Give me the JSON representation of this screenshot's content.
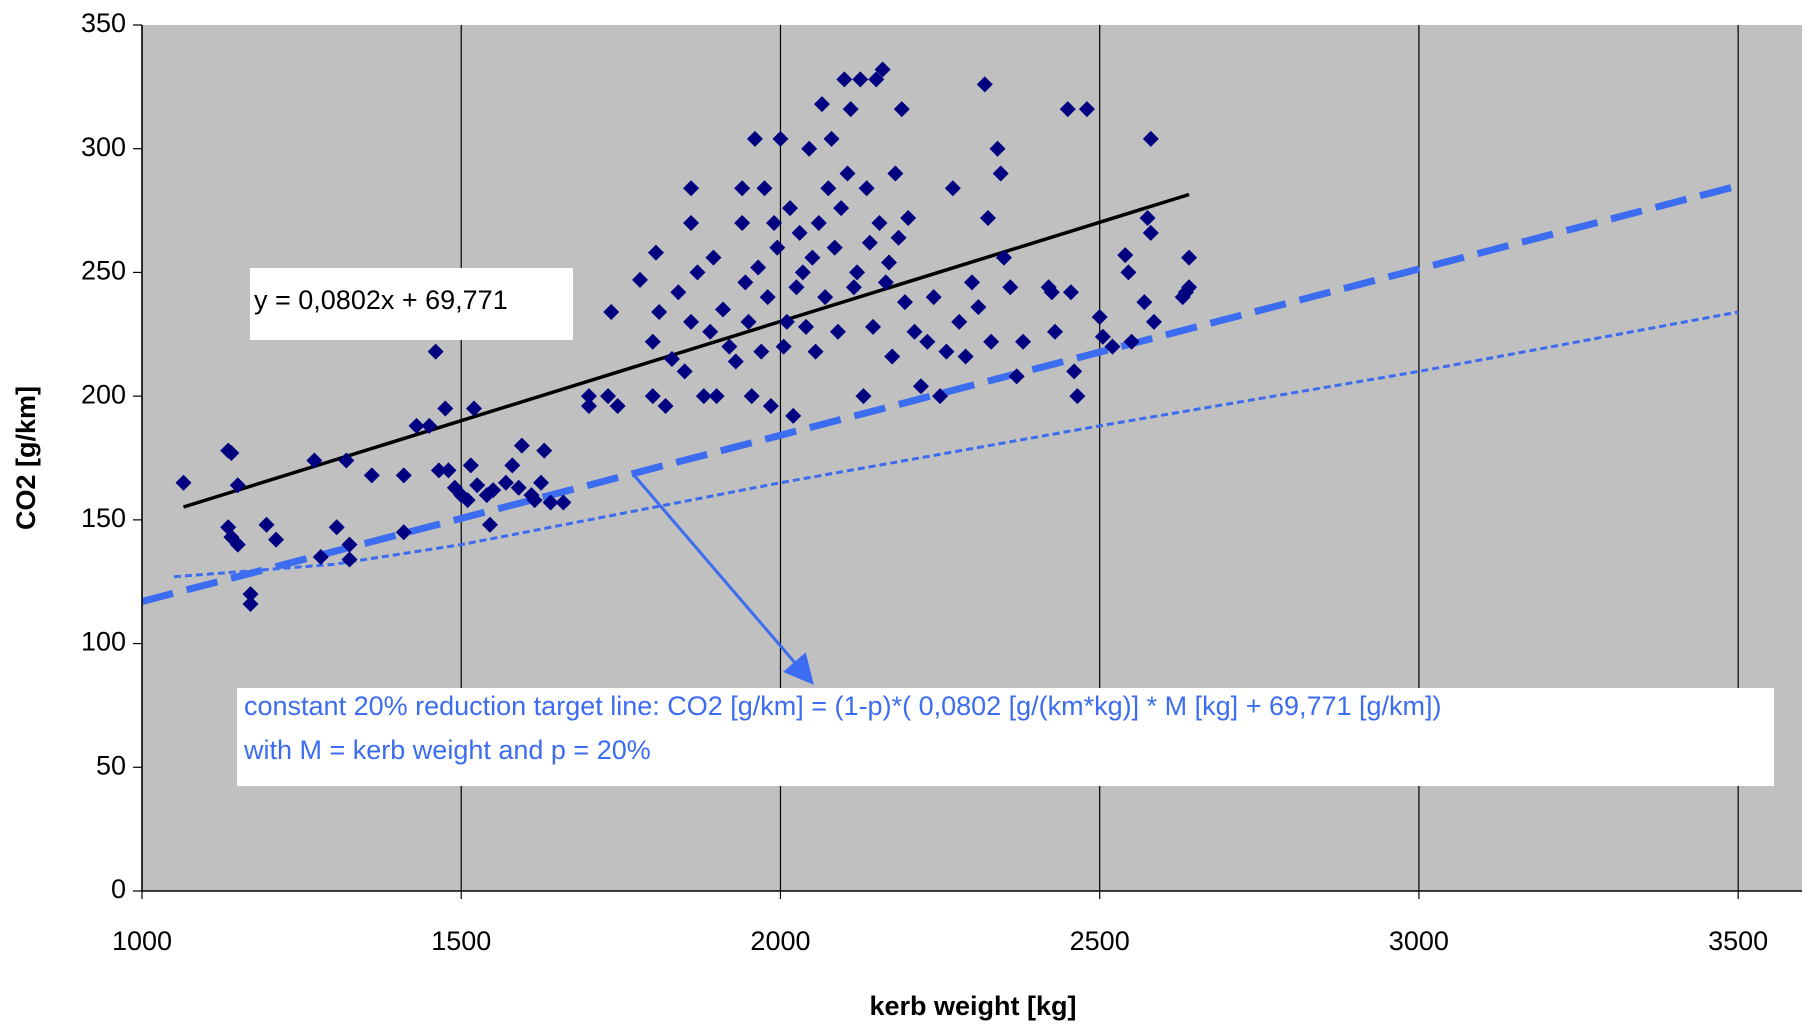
{
  "chart_data": {
    "type": "scatter",
    "xlabel": "kerb weight [kg]",
    "ylabel": "CO2 [g/km]",
    "xlim": [
      1000,
      3600
    ],
    "ylim": [
      0,
      350
    ],
    "xticks": [
      1000,
      1500,
      2000,
      2500,
      3000,
      3500
    ],
    "yticks": [
      0,
      50,
      100,
      150,
      200,
      250,
      300,
      350
    ],
    "xgrid": true,
    "ygrid": false,
    "background": "#c0c0c0",
    "annotations": [
      "y = 0,0802x + 69,771",
      "constant 20% reduction target line: CO2 [g/km]  = (1-p)*( 0,0802 [g/(km*kg)] * M [kg] + 69,771 [g/km])",
      "with M = kerb weight and p = 20%"
    ],
    "series": [
      {
        "style": "markers",
        "color": "#000080",
        "x": [
          1065,
          1135,
          1140,
          1135,
          1140,
          1150,
          1150,
          1170,
          1170,
          1195,
          1210,
          1270,
          1280,
          1305,
          1320,
          1325,
          1325,
          1360,
          1410,
          1410,
          1430,
          1450,
          1460,
          1465,
          1475,
          1480,
          1490,
          1500,
          1510,
          1515,
          1520,
          1525,
          1540,
          1545,
          1550,
          1570,
          1580,
          1590,
          1595,
          1610,
          1615,
          1625,
          1630,
          1640,
          1660,
          1700,
          1700,
          1730,
          1735,
          1745,
          1780,
          1800,
          1800,
          1805,
          1810,
          1820,
          1830,
          1840,
          1850,
          1860,
          1860,
          1860,
          1870,
          1880,
          1890,
          1895,
          1900,
          1910,
          1920,
          1930,
          1940,
          1940,
          1945,
          1950,
          1955,
          1960,
          1965,
          1970,
          1975,
          1980,
          1985,
          1990,
          1995,
          2000,
          2005,
          2010,
          2015,
          2020,
          2025,
          2030,
          2035,
          2040,
          2045,
          2050,
          2055,
          2060,
          2065,
          2070,
          2075,
          2080,
          2085,
          2090,
          2095,
          2100,
          2105,
          2110,
          2115,
          2120,
          2125,
          2130,
          2135,
          2140,
          2145,
          2150,
          2155,
          2160,
          2165,
          2170,
          2175,
          2180,
          2185,
          2190,
          2195,
          2200,
          2210,
          2220,
          2230,
          2240,
          2250,
          2260,
          2270,
          2280,
          2290,
          2300,
          2310,
          2320,
          2325,
          2330,
          2340,
          2345,
          2350,
          2360,
          2370,
          2380,
          2420,
          2425,
          2430,
          2450,
          2455,
          2460,
          2465,
          2480,
          2500,
          2505,
          2520,
          2540,
          2545,
          2550,
          2570,
          2575,
          2580,
          2580,
          2585,
          2630,
          2640,
          2640,
          2635
        ],
        "values": [
          165,
          178,
          177,
          147,
          143,
          140,
          164,
          120,
          116,
          148,
          142,
          174,
          135,
          147,
          174,
          140,
          134,
          168,
          145,
          168,
          188,
          188,
          218,
          170,
          195,
          170,
          163,
          160,
          158,
          172,
          195,
          164,
          160,
          148,
          162,
          165,
          172,
          163,
          180,
          160,
          158,
          165,
          178,
          157,
          157,
          200,
          196,
          200,
          234,
          196,
          247,
          200,
          222,
          258,
          234,
          196,
          215,
          242,
          210,
          284,
          270,
          230,
          250,
          200,
          226,
          256,
          200,
          235,
          220,
          214,
          284,
          270,
          246,
          230,
          200,
          304,
          252,
          218,
          284,
          240,
          196,
          270,
          260,
          304,
          220,
          230,
          276,
          192,
          244,
          266,
          250,
          228,
          300,
          256,
          218,
          270,
          318,
          240,
          284,
          304,
          260,
          226,
          276,
          328,
          290,
          316,
          244,
          250,
          328,
          200,
          284,
          262,
          228,
          328,
          270,
          332,
          246,
          254,
          216,
          290,
          264,
          316,
          238,
          272,
          226,
          204,
          222,
          240,
          200,
          218,
          284,
          230,
          216,
          246,
          236,
          326,
          272,
          222,
          300,
          290,
          256,
          244,
          208,
          222,
          244,
          242,
          226,
          316,
          242,
          210,
          200,
          316,
          232,
          224,
          220,
          257,
          250,
          222,
          238,
          272,
          304,
          266,
          230,
          240,
          256,
          244,
          242
        ]
      },
      {
        "style": "solid",
        "color": "#000000",
        "x": [
          1065,
          2640
        ],
        "values": [
          155.2,
          281.5
        ]
      },
      {
        "style": "dashed",
        "color": "#3c6cf0",
        "x": [
          1000,
          3500
        ],
        "values": [
          117,
          285
        ]
      },
      {
        "style": "dotted",
        "color": "#3c6cf0",
        "x": [
          1050,
          1300,
          1500,
          1700,
          2000,
          2500,
          3000,
          3500
        ],
        "values": [
          127,
          132,
          140,
          150,
          165,
          188,
          210,
          234
        ]
      }
    ]
  }
}
